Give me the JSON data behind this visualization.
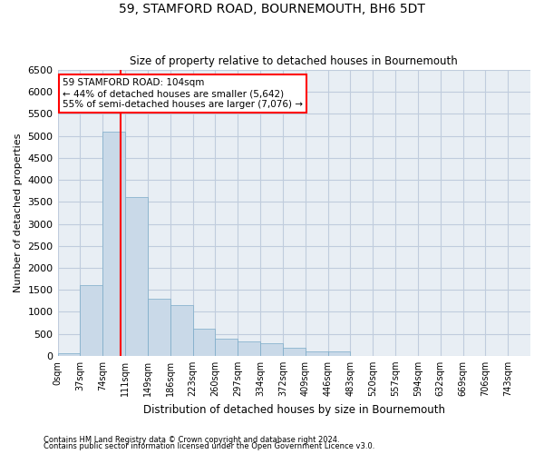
{
  "title": "59, STAMFORD ROAD, BOURNEMOUTH, BH6 5DT",
  "subtitle": "Size of property relative to detached houses in Bournemouth",
  "xlabel": "Distribution of detached houses by size in Bournemouth",
  "ylabel": "Number of detached properties",
  "bin_labels": [
    "0sqm",
    "37sqm",
    "74sqm",
    "111sqm",
    "149sqm",
    "186sqm",
    "223sqm",
    "260sqm",
    "297sqm",
    "334sqm",
    "372sqm",
    "409sqm",
    "446sqm",
    "483sqm",
    "520sqm",
    "557sqm",
    "594sqm",
    "632sqm",
    "669sqm",
    "706sqm",
    "743sqm"
  ],
  "bar_heights": [
    50,
    1600,
    5100,
    3600,
    1300,
    1150,
    620,
    380,
    320,
    290,
    180,
    90,
    90,
    0,
    0,
    0,
    0,
    0,
    0,
    0,
    0
  ],
  "bar_color": "#c9d9e8",
  "bar_edge_color": "#7aaac8",
  "annotation_text": "59 STAMFORD ROAD: 104sqm\n← 44% of detached houses are smaller (5,642)\n55% of semi-detached houses are larger (7,076) →",
  "annotation_box_color": "white",
  "annotation_box_edge_color": "red",
  "vline_color": "red",
  "ylim": [
    0,
    6500
  ],
  "yticks": [
    0,
    500,
    1000,
    1500,
    2000,
    2500,
    3000,
    3500,
    4000,
    4500,
    5000,
    5500,
    6000,
    6500
  ],
  "grid_color": "#c0ccdd",
  "bg_color": "#e8eef4",
  "footnote1": "Contains HM Land Registry data © Crown copyright and database right 2024.",
  "footnote2": "Contains public sector information licensed under the Open Government Licence v3.0."
}
